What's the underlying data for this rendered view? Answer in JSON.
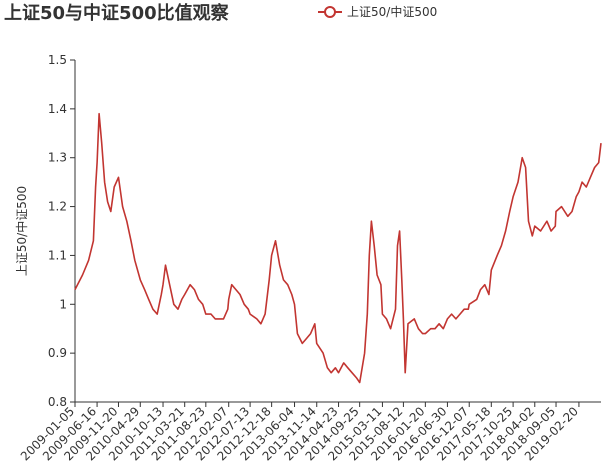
{
  "chart_data": {
    "type": "line",
    "title": "上证50与中证500比值观察",
    "legend": {
      "entries": [
        "上证50/中证500"
      ],
      "placement": "top-center"
    },
    "ylabel": "上证50/中证500",
    "xlabel": "",
    "ylim": [
      0.8,
      1.5
    ],
    "yticks": [
      "0.8",
      "0.9",
      "1",
      "1.1",
      "1.2",
      "1.3",
      "1.4",
      "1.5"
    ],
    "grid": false,
    "x_tick_labels": [
      "2009-01-05",
      "2009-06-16",
      "2009-11-20",
      "2010-04-29",
      "2010-10-13",
      "2011-03-21",
      "2011-08-23",
      "2012-02-07",
      "2012-07-13",
      "2012-12-18",
      "2013-06-04",
      "2013-11-14",
      "2014-04-23",
      "2014-09-25",
      "2015-03-11",
      "2015-08-12",
      "2016-01-20",
      "2016-06-30",
      "2016-12-07",
      "2017-05-18",
      "2017-10-25",
      "2018-04-02",
      "2018-09-05",
      "2019-02-20"
    ],
    "series": [
      {
        "name": "上证50/中证500",
        "color": "#c23531",
        "x": [
          "2009-01-05",
          "2009-03-01",
          "2009-04-15",
          "2009-05-20",
          "2009-06-05",
          "2009-06-16",
          "2009-07-01",
          "2009-07-20",
          "2009-08-10",
          "2009-09-01",
          "2009-09-25",
          "2009-10-20",
          "2009-11-20",
          "2009-12-20",
          "2010-01-20",
          "2010-02-20",
          "2010-03-20",
          "2010-04-29",
          "2010-05-31",
          "2010-06-30",
          "2010-07-31",
          "2010-08-31",
          "2010-09-30",
          "2010-10-13",
          "2010-10-31",
          "2010-12-31",
          "2011-01-31",
          "2011-02-28",
          "2011-03-21",
          "2011-04-30",
          "2011-05-31",
          "2011-06-30",
          "2011-07-31",
          "2011-08-23",
          "2011-09-30",
          "2011-10-31",
          "2011-12-31",
          "2012-01-31",
          "2012-02-07",
          "2012-02-29",
          "2012-03-31",
          "2012-04-30",
          "2012-05-31",
          "2012-06-30",
          "2012-07-13",
          "2012-08-31",
          "2012-09-30",
          "2012-10-31",
          "2012-11-30",
          "2012-12-18",
          "2013-01-15",
          "2013-02-15",
          "2013-03-15",
          "2013-04-15",
          "2013-05-15",
          "2013-06-04",
          "2013-06-25",
          "2013-07-31",
          "2013-08-31",
          "2013-09-30",
          "2013-10-31",
          "2013-11-14",
          "2013-12-31",
          "2014-01-31",
          "2014-02-28",
          "2014-03-31",
          "2014-04-23",
          "2014-05-31",
          "2014-06-30",
          "2014-07-31",
          "2014-08-31",
          "2014-09-25",
          "2014-10-31",
          "2014-11-20",
          "2014-12-05",
          "2014-12-20",
          "2015-01-10",
          "2015-01-31",
          "2015-02-28",
          "2015-03-11",
          "2015-04-10",
          "2015-05-10",
          "2015-06-15",
          "2015-06-30",
          "2015-07-15",
          "2015-07-31",
          "2015-08-12",
          "2015-08-25",
          "2015-09-15",
          "2015-10-31",
          "2015-11-30",
          "2015-12-31",
          "2016-01-20",
          "2016-02-28",
          "2016-03-31",
          "2016-04-30",
          "2016-05-31",
          "2016-06-30",
          "2016-07-31",
          "2016-08-31",
          "2016-09-30",
          "2016-10-31",
          "2016-11-30",
          "2016-12-07",
          "2017-01-31",
          "2017-02-28",
          "2017-03-31",
          "2017-04-30",
          "2017-05-18",
          "2017-06-30",
          "2017-07-31",
          "2017-08-31",
          "2017-09-30",
          "2017-10-25",
          "2017-11-30",
          "2017-12-31",
          "2018-01-25",
          "2018-02-15",
          "2018-03-15",
          "2018-04-02",
          "2018-05-15",
          "2018-06-30",
          "2018-07-31",
          "2018-08-31",
          "2018-09-05",
          "2018-10-15",
          "2018-11-30",
          "2018-12-31",
          "2019-01-31",
          "2019-02-20",
          "2019-03-15",
          "2019-04-15",
          "2019-05-15",
          "2019-06-15",
          "2019-07-15",
          "2019-08-01"
        ],
        "values": [
          1.03,
          1.06,
          1.09,
          1.13,
          1.24,
          1.29,
          1.39,
          1.33,
          1.25,
          1.21,
          1.19,
          1.24,
          1.26,
          1.2,
          1.17,
          1.13,
          1.09,
          1.05,
          1.03,
          1.01,
          0.99,
          0.98,
          1.02,
          1.04,
          1.08,
          1.0,
          0.99,
          1.01,
          1.02,
          1.04,
          1.03,
          1.01,
          1.0,
          0.98,
          0.98,
          0.97,
          0.97,
          0.99,
          1.01,
          1.04,
          1.03,
          1.02,
          1.0,
          0.99,
          0.98,
          0.97,
          0.96,
          0.98,
          1.05,
          1.1,
          1.13,
          1.08,
          1.05,
          1.04,
          1.02,
          1.0,
          0.94,
          0.92,
          0.93,
          0.94,
          0.96,
          0.92,
          0.9,
          0.87,
          0.86,
          0.87,
          0.86,
          0.88,
          0.87,
          0.86,
          0.85,
          0.84,
          0.9,
          0.98,
          1.1,
          1.17,
          1.12,
          1.06,
          1.04,
          0.98,
          0.97,
          0.95,
          0.99,
          1.12,
          1.15,
          1.05,
          0.97,
          0.86,
          0.96,
          0.97,
          0.95,
          0.94,
          0.94,
          0.95,
          0.95,
          0.96,
          0.95,
          0.97,
          0.98,
          0.97,
          0.98,
          0.99,
          0.99,
          1.0,
          1.01,
          1.03,
          1.04,
          1.02,
          1.07,
          1.1,
          1.12,
          1.15,
          1.19,
          1.22,
          1.25,
          1.3,
          1.28,
          1.17,
          1.14,
          1.16,
          1.15,
          1.17,
          1.15,
          1.16,
          1.19,
          1.2,
          1.18,
          1.19,
          1.22,
          1.23,
          1.25,
          1.24,
          1.26,
          1.28,
          1.29,
          1.33
        ]
      }
    ]
  }
}
